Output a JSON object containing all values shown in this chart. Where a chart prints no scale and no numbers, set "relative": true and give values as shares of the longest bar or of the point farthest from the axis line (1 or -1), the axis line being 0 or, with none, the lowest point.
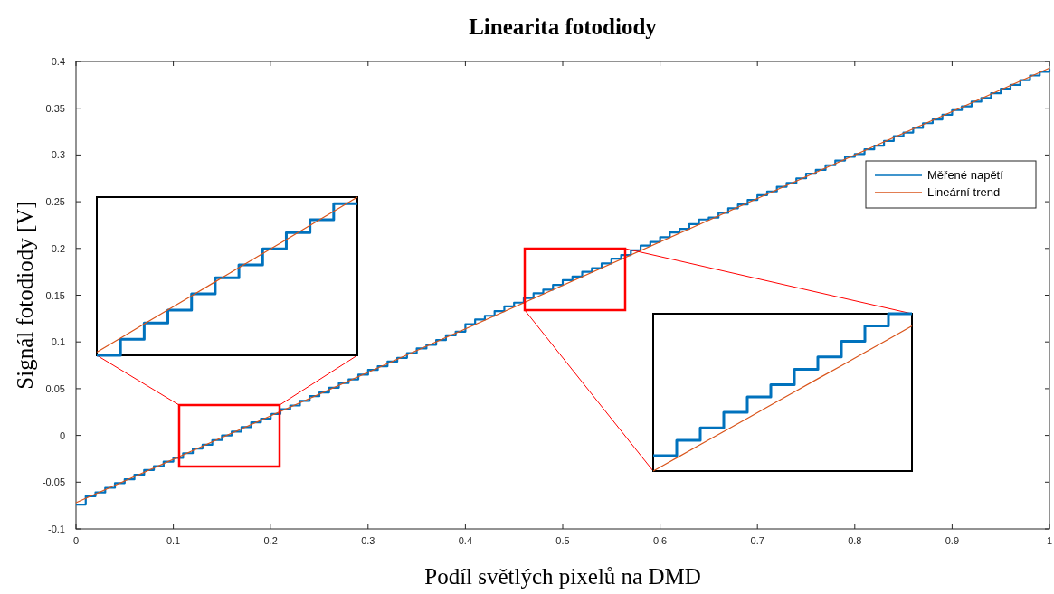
{
  "chart_data": [
    {
      "type": "line",
      "title": "Linearita fotodiody",
      "xlabel": "Podíl světlých pixelů na DMD",
      "ylabel": "Signál fotodiody [V]",
      "xlim": [
        0,
        1
      ],
      "ylim": [
        -0.1,
        0.4
      ],
      "xticks": [
        0,
        0.1,
        0.2,
        0.3,
        0.4,
        0.5,
        0.6,
        0.7,
        0.8,
        0.9,
        1
      ],
      "yticks": [
        -0.1,
        -0.05,
        0,
        0.05,
        0.1,
        0.15,
        0.2,
        0.25,
        0.3,
        0.35,
        0.4
      ],
      "grid": false,
      "legend": "right",
      "series": [
        {
          "name": "Měřené napětí",
          "type": "step",
          "color": "#0072bd",
          "x": [
            0,
            0.01,
            0.02,
            0.03,
            0.04,
            0.05,
            0.06,
            0.07,
            0.08,
            0.09,
            0.1,
            0.11,
            0.12,
            0.13,
            0.14,
            0.15,
            0.16,
            0.17,
            0.18,
            0.19,
            0.2,
            0.21,
            0.22,
            0.23,
            0.24,
            0.25,
            0.26,
            0.27,
            0.28,
            0.29,
            0.3,
            0.31,
            0.32,
            0.33,
            0.34,
            0.35,
            0.36,
            0.37,
            0.38,
            0.39,
            0.4,
            0.41,
            0.42,
            0.43,
            0.44,
            0.45,
            0.46,
            0.47,
            0.48,
            0.49,
            0.5,
            0.51,
            0.52,
            0.53,
            0.54,
            0.55,
            0.56,
            0.57,
            0.58,
            0.59,
            0.6,
            0.61,
            0.62,
            0.63,
            0.64,
            0.65,
            0.66,
            0.67,
            0.68,
            0.69,
            0.7,
            0.71,
            0.72,
            0.73,
            0.74,
            0.75,
            0.76,
            0.77,
            0.78,
            0.79,
            0.8,
            0.81,
            0.82,
            0.83,
            0.84,
            0.85,
            0.86,
            0.87,
            0.88,
            0.89,
            0.9,
            0.91,
            0.92,
            0.93,
            0.94,
            0.95,
            0.96,
            0.97,
            0.98,
            0.99,
            1
          ],
          "values": [
            -0.074,
            -0.065,
            -0.061,
            -0.056,
            -0.051,
            -0.047,
            -0.042,
            -0.037,
            -0.033,
            -0.028,
            -0.024,
            -0.019,
            -0.014,
            -0.01,
            -0.005,
            0,
            0.004,
            0.009,
            0.014,
            0.018,
            0.023,
            0.028,
            0.032,
            0.037,
            0.042,
            0.046,
            0.051,
            0.056,
            0.06,
            0.065,
            0.07,
            0.074,
            0.079,
            0.083,
            0.088,
            0.093,
            0.097,
            0.102,
            0.107,
            0.111,
            0.119,
            0.124,
            0.128,
            0.133,
            0.138,
            0.142,
            0.147,
            0.152,
            0.156,
            0.161,
            0.166,
            0.17,
            0.175,
            0.179,
            0.184,
            0.189,
            0.193,
            0.198,
            0.203,
            0.207,
            0.212,
            0.217,
            0.221,
            0.226,
            0.231,
            0.233,
            0.238,
            0.243,
            0.247,
            0.252,
            0.257,
            0.261,
            0.266,
            0.27,
            0.275,
            0.28,
            0.284,
            0.289,
            0.294,
            0.298,
            0.301,
            0.306,
            0.31,
            0.315,
            0.32,
            0.324,
            0.329,
            0.334,
            0.338,
            0.343,
            0.348,
            0.352,
            0.357,
            0.361,
            0.366,
            0.371,
            0.375,
            0.38,
            0.385,
            0.389,
            0.392
          ]
        },
        {
          "name": "Lineární trend",
          "type": "line",
          "color": "#d95319",
          "x": [
            0,
            1
          ],
          "values": [
            -0.072,
            0.393
          ]
        }
      ]
    },
    {
      "type": "line",
      "relative": true,
      "categories": [
        null,
        null,
        null,
        null,
        null,
        null,
        null,
        null,
        null,
        null,
        null,
        null
      ],
      "series": [
        {
          "type": "step",
          "color": "#0072bd",
          "values": [
            0,
            0.102,
            0.204,
            0.286,
            0.388,
            0.49,
            0.571,
            0.673,
            0.776,
            0.857,
            0.959,
            0.959
          ]
        },
        {
          "type": "line",
          "color": "#d95319",
          "values": [
            0.02,
            0.109,
            0.198,
            0.287,
            0.376,
            0.465,
            0.554,
            0.643,
            0.732,
            0.821,
            0.91,
            1
          ]
        }
      ]
    },
    {
      "type": "line",
      "relative": true,
      "categories": [
        null,
        null,
        null,
        null,
        null,
        null,
        null,
        null,
        null,
        null,
        null,
        null
      ],
      "series": [
        {
          "type": "step",
          "color": "#0072bd",
          "values": [
            0.098,
            0.196,
            0.275,
            0.373,
            0.471,
            0.549,
            0.647,
            0.725,
            0.824,
            0.922,
            1,
            1
          ]
        },
        {
          "type": "line",
          "color": "#d95319",
          "values": [
            0,
            0.084,
            0.168,
            0.251,
            0.335,
            0.419,
            0.503,
            0.587,
            0.67,
            0.754,
            0.838,
            0.922
          ]
        }
      ]
    }
  ]
}
